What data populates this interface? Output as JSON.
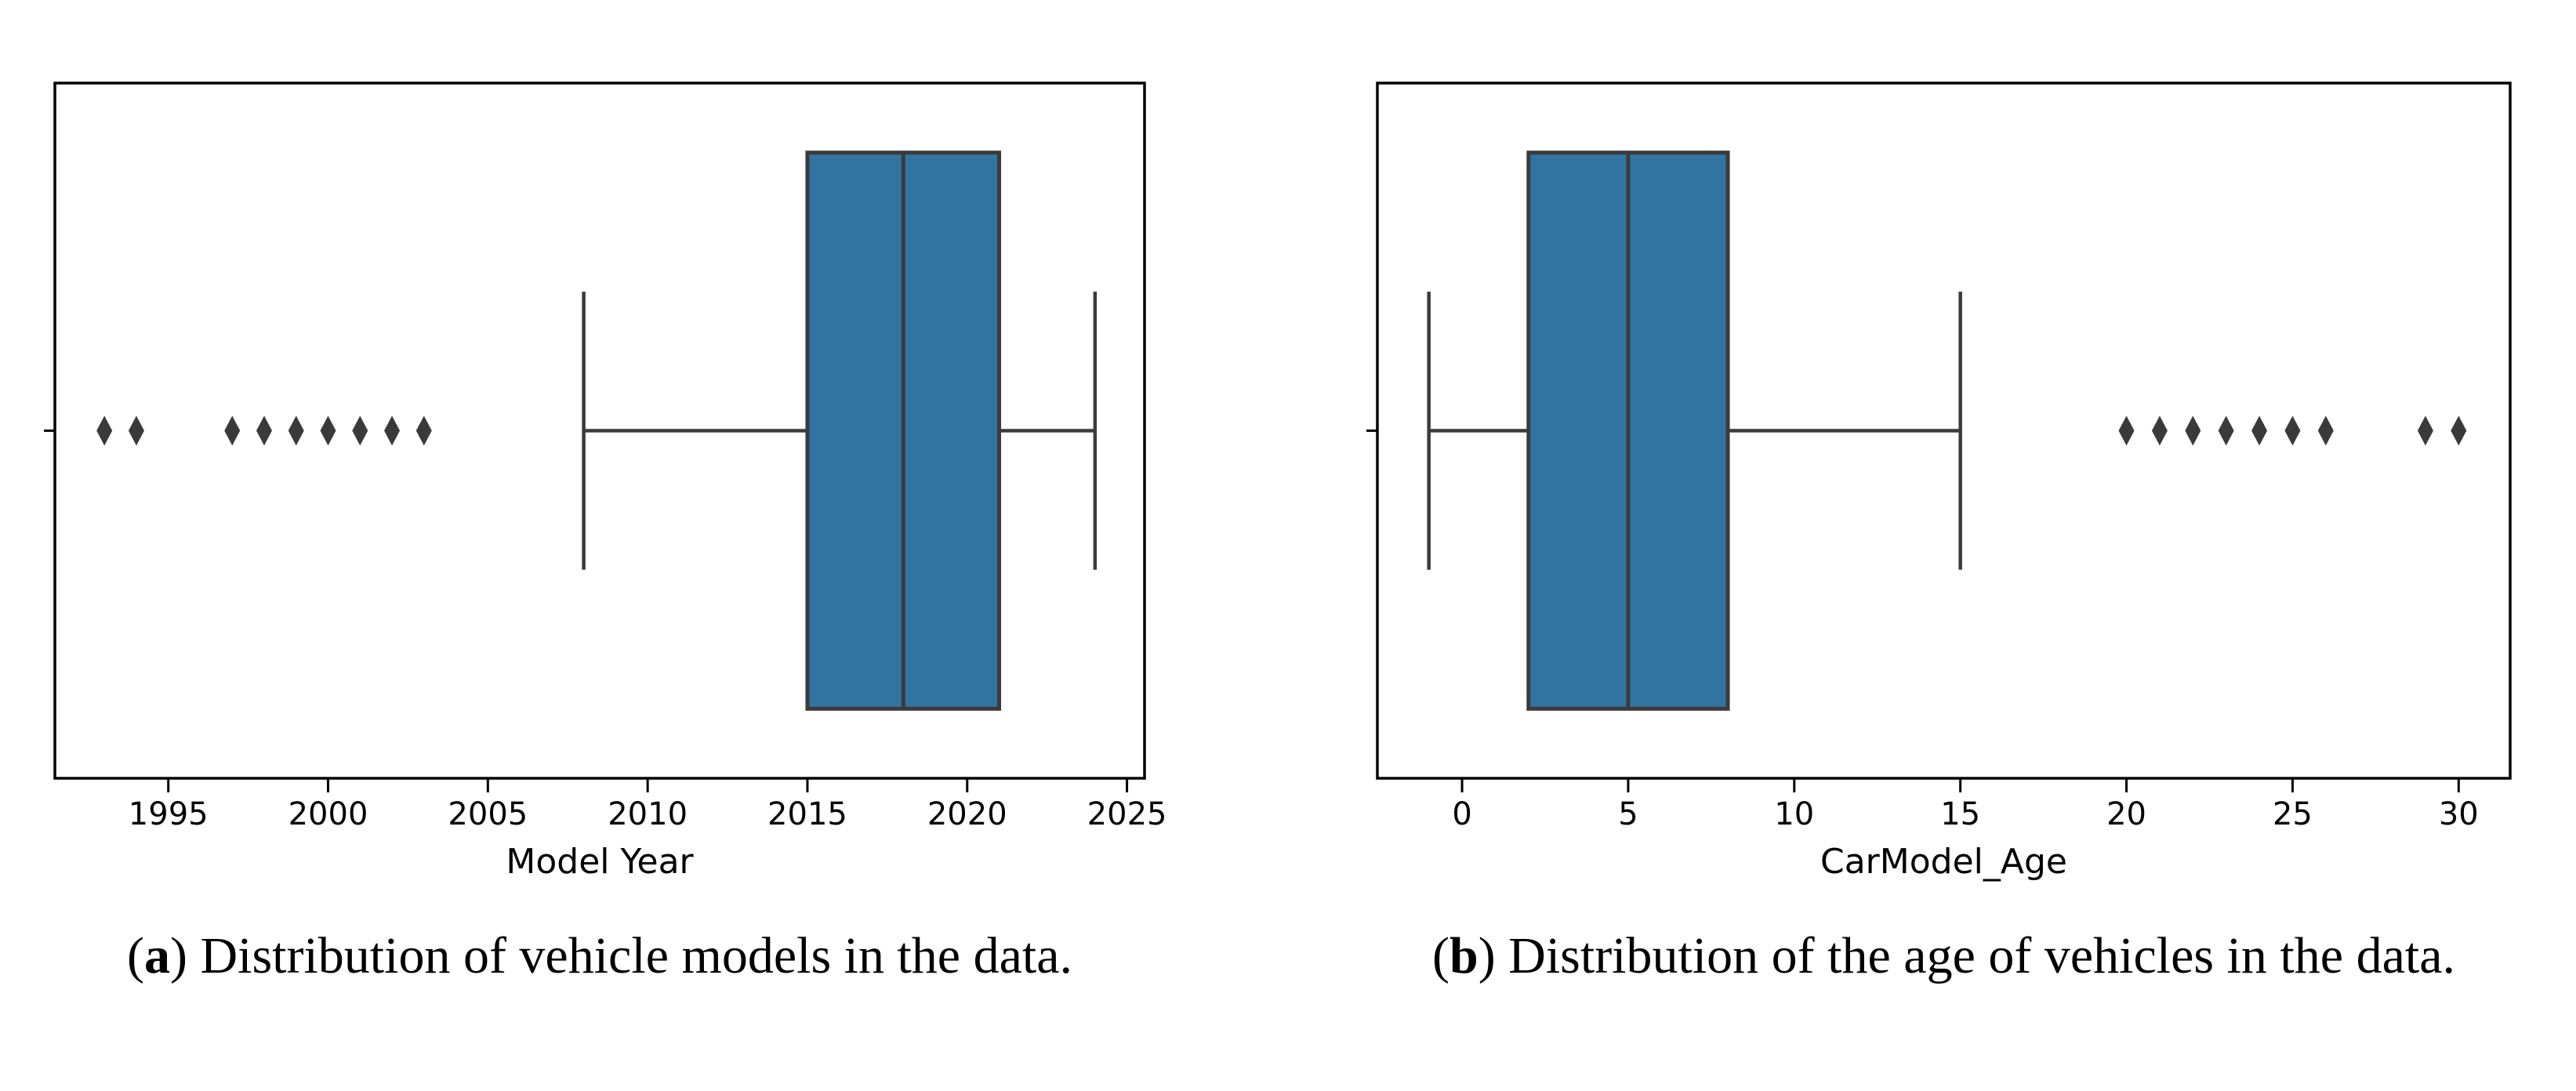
{
  "figure": {
    "background": "#ffffff",
    "captions": {
      "a": {
        "label": "a",
        "text": "Distribution of vehicle models in the data."
      },
      "b": {
        "label": "b",
        "text": "Distribution of the age of vehicles in the data."
      }
    }
  },
  "chart_data": [
    {
      "type": "boxplot",
      "orientation": "horizontal",
      "title": "",
      "xlabel": "Model Year",
      "ylabel": "",
      "xlim": [
        1991.45,
        2025.55
      ],
      "xticks": [
        1995,
        2000,
        2005,
        2010,
        2015,
        2020,
        2025
      ],
      "grid": false,
      "box": {
        "q1": 2015,
        "median": 2018,
        "q3": 2021,
        "whisker_low": 2008,
        "whisker_high": 2024
      },
      "outliers": [
        1993,
        1994,
        1997,
        1998,
        1999,
        2000,
        2001,
        2002,
        2003
      ],
      "box_fill": "#3274a1",
      "line_color": "#3b3b3b",
      "flier_color": "#3a3a3a",
      "spine_color": "#000000"
    },
    {
      "type": "boxplot",
      "orientation": "horizontal",
      "title": "",
      "xlabel": "CarModel_Age",
      "ylabel": "",
      "xlim": [
        -2.55,
        31.55
      ],
      "xticks": [
        0,
        5,
        10,
        15,
        20,
        25,
        30
      ],
      "grid": false,
      "box": {
        "q1": 2,
        "median": 5,
        "q3": 8,
        "whisker_low": -1,
        "whisker_high": 15
      },
      "outliers": [
        20,
        21,
        22,
        23,
        24,
        25,
        26,
        29,
        30
      ],
      "box_fill": "#3274a1",
      "line_color": "#3b3b3b",
      "flier_color": "#3a3a3a",
      "spine_color": "#000000"
    }
  ]
}
